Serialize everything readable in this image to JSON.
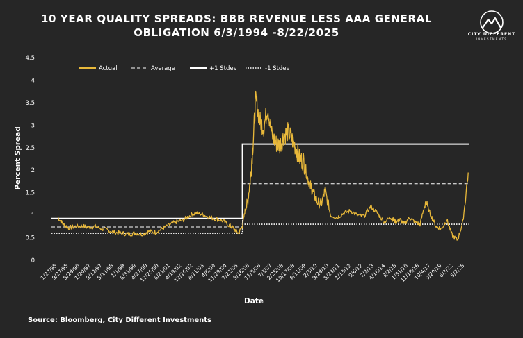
{
  "chart_data": {
    "type": "line",
    "title_lines": [
      "10 YEAR QUALITY SPREADS: BBB REVENUE LESS AAA GENERAL",
      "OBLIGATION 6/3/1994 -8/22/2025"
    ],
    "xlabel": "Date",
    "ylabel": "Percent Spread",
    "ylim": [
      0,
      4.5
    ],
    "y_ticks": [
      "0",
      "0.5",
      "1",
      "1.5",
      "2",
      "2.5",
      "3",
      "3.5",
      "4",
      "4.5"
    ],
    "x_tick_labels": [
      "1/27/95",
      "9/27/95",
      "5/28/96",
      "1/26/97",
      "9/25/97",
      "5/25/98",
      "1/21/99",
      "9/20/99",
      "5/19/00",
      "1/16/01",
      "9/15/01",
      "5/15/02",
      "1/10/03",
      "9/9/03",
      "5/8/04",
      "1/5/05",
      "9/4/05",
      "5/5/06",
      "1/2/07",
      "9/3/07",
      "5/2/08",
      "12/31/08",
      "8/31/09",
      "4/30/10",
      "12/29/10",
      "8/29/11",
      "4/27/12",
      "12/26/12",
      "8/26/13",
      "4/25/14",
      "12/24/14",
      "8/24/15",
      "4/22/16",
      "12/21/16",
      "8/21/17",
      "4/20/18",
      "12/19/18",
      "8/19/19",
      "4/17/20",
      "12/16/20",
      "8/16/21",
      "4/15/22",
      "12/14/22",
      "8/14/23",
      "4/12/24",
      "12/11/24",
      "8/11/25"
    ],
    "x_tick_labels_displayed": [
      "1/27/95",
      "9/27/95",
      "5/28/96",
      "1/20/97",
      "9/12/97",
      "5/11/98",
      "1/1/99",
      "8/31/99",
      "4/27/00",
      "12/25/00",
      "8/21/01",
      "4/19/02",
      "12/16/02",
      "8/11/03",
      "4/6/04",
      "11/29/04",
      "7/22/05",
      "3/16/06",
      "11/8/06",
      "7/3/07",
      "2/25/08",
      "10/17/08",
      "6/11/09",
      "2/3/10",
      "9/28/10",
      "5/23/11",
      "1/13/12",
      "9/6/12",
      "4/30/13",
      "12/20/13",
      "8/14/14",
      "4/7/15",
      "11/30/15",
      "7/22/16",
      "3/16/17",
      "11/8/17",
      "7/2/18",
      "2/22/19",
      "10/15/19",
      "6/8/20",
      "1/29/21",
      "9/20/21",
      "5/15/22",
      "1/6/23",
      "8/29/23",
      "4/22/24",
      "12/15/24",
      "8/5/25"
    ],
    "x_tick_labels_visible": [
      "1/27/95",
      "9/27/95",
      "5/28/96",
      "1/20/97",
      "9/12/97",
      "5/11/98",
      "1/1/99",
      "8/31/99",
      "4/27/00",
      "12/25/00",
      "8/21/01",
      "4/19/02",
      "12/16/02",
      "8/11/03",
      "4/6/04",
      "11/29/04",
      "7/22/05",
      "3/16/06",
      "11/8/06",
      "7/3/07",
      "2/25/08",
      "10/17/08",
      "6/11/09",
      "2/3/10",
      "9/28/10",
      "5/23/11",
      "1/13/12",
      "9/6/12",
      "7/2/13",
      "4/16/14",
      "3/2/15",
      "1/31/16",
      "11/18/16",
      "10/4/17",
      "9/20/19",
      "6/3/22",
      "5/2/25"
    ],
    "legend_position": "top-left",
    "grid": false,
    "colors": {
      "actual": "#e8b83a",
      "bands": "#ffffff",
      "background": "#262626"
    },
    "legend": [
      "Actual",
      "Average",
      "+1 Stdev",
      "-1 Stdev"
    ],
    "x_range": [
      "6/3/1994",
      "8/22/2025"
    ],
    "series": [
      {
        "name": "Actual",
        "x": [
          1994.9,
          1995.3,
          1995.7,
          1996.2,
          1996.7,
          1997.2,
          1997.7,
          1998.2,
          1998.7,
          1999.2,
          1999.7,
          2000.2,
          2000.7,
          2001.2,
          2001.7,
          2002.2,
          2002.7,
          2003.2,
          2003.7,
          2004.2,
          2004.7,
          2005.2,
          2005.7,
          2006.2,
          2006.7,
          2007.2,
          2007.7,
          2008.0,
          2008.4,
          2008.7,
          2008.9,
          2009.1,
          2009.3,
          2009.5,
          2009.7,
          2010.0,
          2010.3,
          2010.6,
          2010.9,
          2011.2,
          2011.5,
          2011.8,
          2012.1,
          2012.4,
          2012.7,
          2013.0,
          2013.3,
          2013.6,
          2013.8,
          2014.0,
          2014.3,
          2014.6,
          2014.9,
          2015.3,
          2015.8,
          2016.3,
          2016.8,
          2017.3,
          2017.8,
          2018.3,
          2018.8,
          2019.3,
          2019.8,
          2020.0,
          2020.2,
          2020.5,
          2020.8,
          2021.2,
          2021.6,
          2022.0,
          2022.4,
          2022.8,
          2023.2,
          2023.6,
          2024.0,
          2024.4,
          2024.8,
          2025.2,
          2025.6
        ],
        "values": [
          0.95,
          0.8,
          0.72,
          0.75,
          0.76,
          0.73,
          0.75,
          0.7,
          0.66,
          0.62,
          0.6,
          0.58,
          0.6,
          0.58,
          0.64,
          0.62,
          0.7,
          0.78,
          0.85,
          0.88,
          0.98,
          1.05,
          1.02,
          0.96,
          0.92,
          0.88,
          0.78,
          0.72,
          0.6,
          0.75,
          1.1,
          1.3,
          1.8,
          2.6,
          3.6,
          3.1,
          2.95,
          3.4,
          2.8,
          2.6,
          2.55,
          2.75,
          2.85,
          2.7,
          2.5,
          2.25,
          2.2,
          1.8,
          1.65,
          1.5,
          1.3,
          1.25,
          1.55,
          1.0,
          0.95,
          1.05,
          1.1,
          1.0,
          0.98,
          1.2,
          1.05,
          0.85,
          0.95,
          0.9,
          0.85,
          0.9,
          0.8,
          0.95,
          0.85,
          0.8,
          1.3,
          1.0,
          0.75,
          0.7,
          0.9,
          0.55,
          0.45,
          0.85,
          1.95
        ]
      },
      {
        "name": "Average",
        "segments": [
          {
            "x": [
              1994.42,
              2008.71
            ],
            "value": 0.74
          },
          {
            "x": [
              2008.71,
              2025.64
            ],
            "value": 1.7
          }
        ]
      },
      {
        "name": "+1 Stdev",
        "segments": [
          {
            "x": [
              1994.42,
              2008.71
            ],
            "value": 0.93
          },
          {
            "x": [
              2008.71,
              2025.64
            ],
            "value": 2.58
          }
        ]
      },
      {
        "name": "-1 Stdev",
        "segments": [
          {
            "x": [
              1994.42,
              2008.71
            ],
            "value": 0.6
          },
          {
            "x": [
              2008.71,
              2025.64
            ],
            "value": 0.8
          }
        ]
      }
    ]
  },
  "logo": {
    "name": "CITY DIFFERENT",
    "sub": "INVESTMENTS"
  },
  "source": "Source: Bloomberg, City Different Investments"
}
